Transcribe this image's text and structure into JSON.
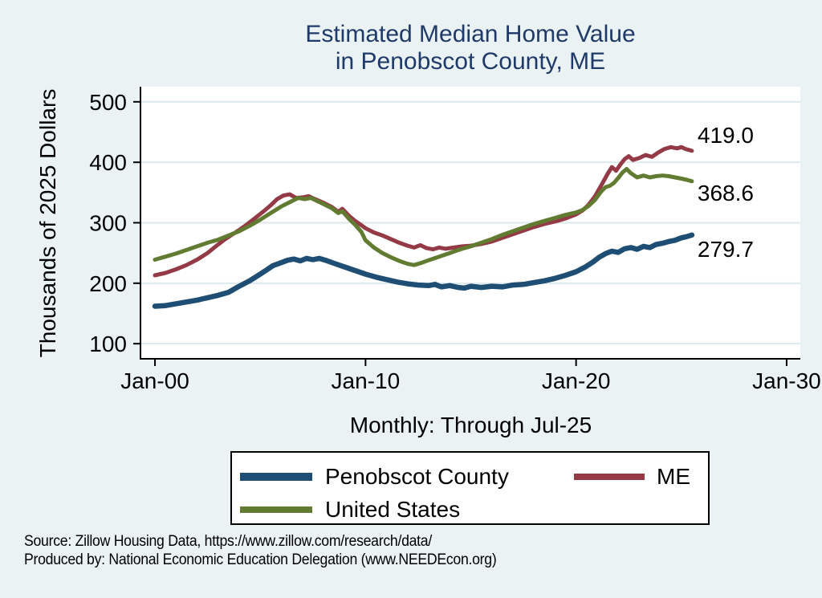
{
  "header": {
    "title_line1": "Estimated Median Home Value",
    "title_line2": "in Penobscot County, ME"
  },
  "notes": {
    "line1": "Source: Zillow Housing Data, https://www.zillow.com/research/data/",
    "line2": "Produced by: National Economic Education Delegation (www.NEEDEcon.org)"
  },
  "colors": {
    "page_background": "#eaf2f3",
    "plot_background": "#ffffff",
    "gridline": "#dde9ec",
    "axis": "#000000",
    "title_text": "#1f3a68",
    "body_text": "#000000",
    "penobscot_blue": "#1f4e74",
    "maine_red": "#943a46",
    "us_green": "#617c31"
  },
  "chart_data": {
    "type": "line",
    "title": "Estimated Median Home Value in Penobscot County, ME",
    "ylabel": "Thousands of 2025 Dollars",
    "xlabel": "",
    "xcaption": "Monthly: Through Jul-25",
    "grid": "horizontal",
    "legend_position": "bottom",
    "xlim": [
      1999.35,
      2030.65
    ],
    "ylim": [
      75,
      525
    ],
    "yticks": [
      {
        "value": 100,
        "label": "100"
      },
      {
        "value": 200,
        "label": "200"
      },
      {
        "value": 300,
        "label": "300"
      },
      {
        "value": 400,
        "label": "400"
      },
      {
        "value": 500,
        "label": "500"
      }
    ],
    "xticks": [
      {
        "value": 2000,
        "label": "Jan-00"
      },
      {
        "value": 2010,
        "label": "Jan-10"
      },
      {
        "value": 2020,
        "label": "Jan-20"
      },
      {
        "value": 2030,
        "label": "Jan-30"
      }
    ],
    "series": [
      {
        "name": "Penobscot County",
        "color": "#1f4e74",
        "line_width": 6.5,
        "end_label": "279.7",
        "points": [
          [
            2000,
            162
          ],
          [
            2000.5,
            163
          ],
          [
            2001,
            166
          ],
          [
            2001.5,
            169
          ],
          [
            2002,
            172
          ],
          [
            2002.5,
            176
          ],
          [
            2003,
            180
          ],
          [
            2003.5,
            185
          ],
          [
            2004,
            195
          ],
          [
            2004.5,
            204
          ],
          [
            2005,
            215
          ],
          [
            2005.3,
            222
          ],
          [
            2005.6,
            229
          ],
          [
            2006,
            234
          ],
          [
            2006.3,
            238
          ],
          [
            2006.6,
            240
          ],
          [
            2006.9,
            237
          ],
          [
            2007.2,
            241
          ],
          [
            2007.5,
            239
          ],
          [
            2007.8,
            241
          ],
          [
            2008.1,
            238
          ],
          [
            2008.5,
            233
          ],
          [
            2009,
            227
          ],
          [
            2009.5,
            221
          ],
          [
            2010,
            215
          ],
          [
            2010.5,
            210
          ],
          [
            2011,
            206
          ],
          [
            2011.5,
            202
          ],
          [
            2012,
            199
          ],
          [
            2012.5,
            197
          ],
          [
            2013,
            196
          ],
          [
            2013.3,
            198
          ],
          [
            2013.6,
            194
          ],
          [
            2014,
            196
          ],
          [
            2014.4,
            193
          ],
          [
            2014.7,
            192
          ],
          [
            2015,
            195
          ],
          [
            2015.5,
            193
          ],
          [
            2016,
            195
          ],
          [
            2016.5,
            194
          ],
          [
            2017,
            197
          ],
          [
            2017.5,
            198
          ],
          [
            2018,
            201
          ],
          [
            2018.5,
            204
          ],
          [
            2019,
            208
          ],
          [
            2019.5,
            213
          ],
          [
            2020,
            219
          ],
          [
            2020.4,
            226
          ],
          [
            2020.8,
            235
          ],
          [
            2021.1,
            243
          ],
          [
            2021.4,
            249
          ],
          [
            2021.7,
            253
          ],
          [
            2022,
            251
          ],
          [
            2022.3,
            257
          ],
          [
            2022.6,
            259
          ],
          [
            2022.9,
            256
          ],
          [
            2023.2,
            261
          ],
          [
            2023.5,
            259
          ],
          [
            2023.8,
            264
          ],
          [
            2024.1,
            266
          ],
          [
            2024.4,
            269
          ],
          [
            2024.7,
            271
          ],
          [
            2025,
            275
          ],
          [
            2025.25,
            277
          ],
          [
            2025.5,
            279.7
          ]
        ]
      },
      {
        "name": "ME",
        "color": "#943a46",
        "line_width": 5,
        "end_label": "419.0",
        "points": [
          [
            2000,
            213
          ],
          [
            2000.5,
            217
          ],
          [
            2001,
            223
          ],
          [
            2001.5,
            230
          ],
          [
            2002,
            239
          ],
          [
            2002.5,
            250
          ],
          [
            2003,
            264
          ],
          [
            2003.3,
            272
          ],
          [
            2003.6,
            279
          ],
          [
            2004,
            288
          ],
          [
            2004.4,
            298
          ],
          [
            2004.8,
            309
          ],
          [
            2005.2,
            320
          ],
          [
            2005.5,
            329
          ],
          [
            2005.8,
            339
          ],
          [
            2006.1,
            345
          ],
          [
            2006.4,
            347
          ],
          [
            2006.7,
            341
          ],
          [
            2007,
            342
          ],
          [
            2007.3,
            344
          ],
          [
            2007.6,
            339
          ],
          [
            2008,
            333
          ],
          [
            2008.4,
            326
          ],
          [
            2008.7,
            318
          ],
          [
            2008.9,
            323
          ],
          [
            2009.2,
            312
          ],
          [
            2009.5,
            303
          ],
          [
            2009.8,
            296
          ],
          [
            2010,
            291
          ],
          [
            2010.4,
            284
          ],
          [
            2010.8,
            279
          ],
          [
            2011.2,
            273
          ],
          [
            2011.6,
            267
          ],
          [
            2012,
            262
          ],
          [
            2012.3,
            259
          ],
          [
            2012.6,
            263
          ],
          [
            2012.9,
            258
          ],
          [
            2013.2,
            256
          ],
          [
            2013.5,
            259
          ],
          [
            2013.8,
            257
          ],
          [
            2014.2,
            259
          ],
          [
            2014.6,
            261
          ],
          [
            2015,
            262
          ],
          [
            2015.5,
            265
          ],
          [
            2016,
            269
          ],
          [
            2016.5,
            275
          ],
          [
            2017,
            281
          ],
          [
            2017.5,
            287
          ],
          [
            2018,
            293
          ],
          [
            2018.5,
            298
          ],
          [
            2019,
            302
          ],
          [
            2019.5,
            307
          ],
          [
            2020,
            314
          ],
          [
            2020.3,
            320
          ],
          [
            2020.6,
            330
          ],
          [
            2020.9,
            344
          ],
          [
            2021.2,
            362
          ],
          [
            2021.5,
            381
          ],
          [
            2021.7,
            392
          ],
          [
            2021.9,
            386
          ],
          [
            2022.1,
            396
          ],
          [
            2022.3,
            405
          ],
          [
            2022.5,
            410
          ],
          [
            2022.7,
            404
          ],
          [
            2023,
            407
          ],
          [
            2023.3,
            412
          ],
          [
            2023.6,
            409
          ],
          [
            2023.9,
            416
          ],
          [
            2024.2,
            422
          ],
          [
            2024.5,
            425
          ],
          [
            2024.8,
            423
          ],
          [
            2025,
            425
          ],
          [
            2025.2,
            422
          ],
          [
            2025.5,
            419.0
          ]
        ]
      },
      {
        "name": "United States",
        "color": "#617c31",
        "line_width": 5,
        "end_label": "368.6",
        "points": [
          [
            2000,
            239
          ],
          [
            2000.5,
            244
          ],
          [
            2001,
            249
          ],
          [
            2001.5,
            255
          ],
          [
            2002,
            261
          ],
          [
            2002.5,
            267
          ],
          [
            2003,
            272
          ],
          [
            2003.5,
            279
          ],
          [
            2004,
            286
          ],
          [
            2004.5,
            295
          ],
          [
            2005,
            305
          ],
          [
            2005.5,
            316
          ],
          [
            2006,
            327
          ],
          [
            2006.4,
            334
          ],
          [
            2006.8,
            341
          ],
          [
            2007.1,
            339
          ],
          [
            2007.4,
            341
          ],
          [
            2007.7,
            336
          ],
          [
            2008,
            331
          ],
          [
            2008.4,
            324
          ],
          [
            2008.7,
            316
          ],
          [
            2008.9,
            319
          ],
          [
            2009.2,
            307
          ],
          [
            2009.5,
            297
          ],
          [
            2009.8,
            285
          ],
          [
            2010,
            271
          ],
          [
            2010.4,
            259
          ],
          [
            2010.8,
            250
          ],
          [
            2011.2,
            243
          ],
          [
            2011.6,
            237
          ],
          [
            2012,
            232
          ],
          [
            2012.3,
            230
          ],
          [
            2012.6,
            233
          ],
          [
            2013,
            238
          ],
          [
            2013.5,
            244
          ],
          [
            2014,
            250
          ],
          [
            2014.5,
            256
          ],
          [
            2015,
            261
          ],
          [
            2015.5,
            267
          ],
          [
            2016,
            273
          ],
          [
            2016.5,
            280
          ],
          [
            2017,
            286
          ],
          [
            2017.5,
            292
          ],
          [
            2018,
            298
          ],
          [
            2018.5,
            303
          ],
          [
            2019,
            308
          ],
          [
            2019.5,
            313
          ],
          [
            2020,
            317
          ],
          [
            2020.3,
            321
          ],
          [
            2020.6,
            328
          ],
          [
            2020.9,
            338
          ],
          [
            2021.2,
            352
          ],
          [
            2021.4,
            359
          ],
          [
            2021.6,
            361
          ],
          [
            2021.8,
            366
          ],
          [
            2022,
            374
          ],
          [
            2022.2,
            383
          ],
          [
            2022.4,
            389
          ],
          [
            2022.6,
            382
          ],
          [
            2022.9,
            375
          ],
          [
            2023.2,
            378
          ],
          [
            2023.5,
            375
          ],
          [
            2023.8,
            377
          ],
          [
            2024.1,
            378
          ],
          [
            2024.4,
            377
          ],
          [
            2024.7,
            375
          ],
          [
            2025,
            373
          ],
          [
            2025.25,
            371
          ],
          [
            2025.5,
            368.6
          ]
        ]
      }
    ]
  },
  "legend": {
    "row1_item1": "Penobscot County",
    "row1_item2": "ME",
    "row2_item1": "United States"
  }
}
